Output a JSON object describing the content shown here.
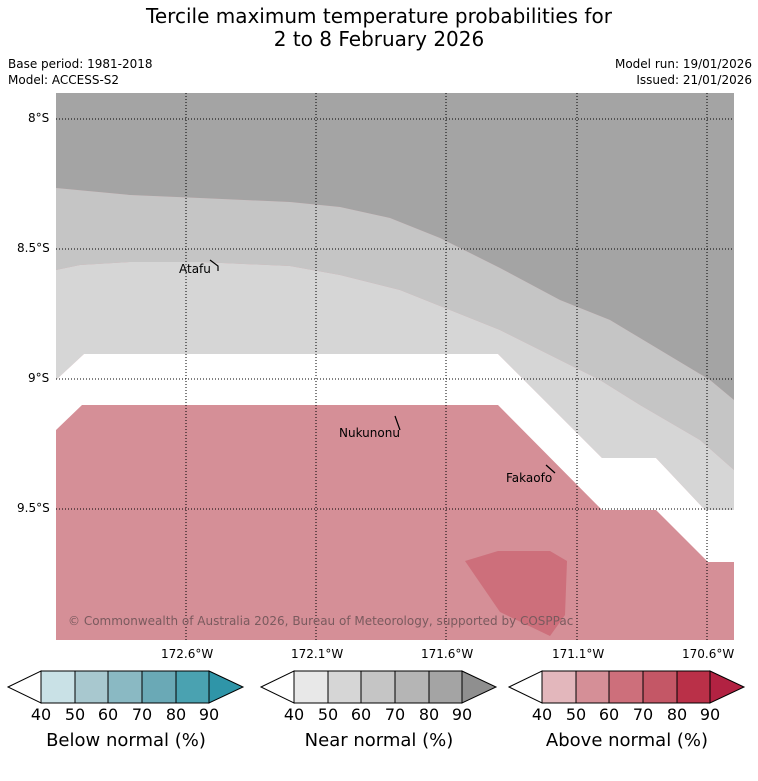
{
  "title": {
    "line1": "Tercile maximum temperature probabilities for",
    "line2": "2 to 8 February 2026"
  },
  "meta": {
    "base_period": "Base period: 1981-2018",
    "model": "Model: ACCESS-S2",
    "model_run": "Model run: 19/01/2026",
    "issued": "Issued: 21/01/2026"
  },
  "map": {
    "lat_labels": [
      "8°S",
      "8.5°S",
      "9°S",
      "9.5°S"
    ],
    "lon_labels": [
      "172.6°W",
      "172.1°W",
      "171.6°W",
      "171.1°W",
      "170.6°W"
    ],
    "places": [
      "Atafu",
      "Nukunonu",
      "Fakaofo"
    ],
    "copyright": "© Commonwealth of Australia 2026, Bureau of Meteorology, supported by COSPPac"
  },
  "colorbars": [
    {
      "label": "Below normal (%)",
      "ticks": [
        "40",
        "50",
        "60",
        "70",
        "80",
        "90"
      ],
      "colors": [
        "#c9e1e6",
        "#a8c8cf",
        "#8ab9c3",
        "#6aa9b6",
        "#4aa2b1",
        "#2f95a8"
      ]
    },
    {
      "label": "Near normal (%)",
      "ticks": [
        "40",
        "50",
        "60",
        "70",
        "80",
        "90"
      ],
      "colors": [
        "#e8e8e8",
        "#d6d6d6",
        "#c5c5c5",
        "#b5b5b5",
        "#a4a4a4",
        "#8f8f8f"
      ]
    },
    {
      "label": "Above normal (%)",
      "ticks": [
        "40",
        "50",
        "60",
        "70",
        "80",
        "90"
      ],
      "colors": [
        "#e3b7bc",
        "#d58f97",
        "#cd6f7b",
        "#c45766",
        "#ba3048",
        "#b22242"
      ]
    }
  ]
}
